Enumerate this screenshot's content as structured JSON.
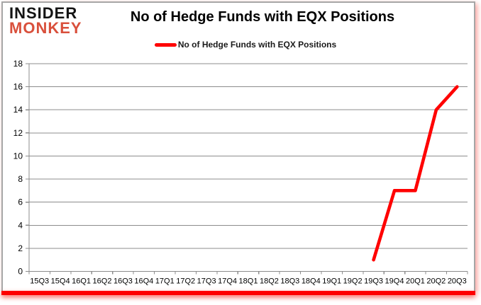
{
  "logo": {
    "line1": "INSIDER",
    "line2": "MONKEY"
  },
  "title": "No of Hedge Funds with EQX Positions",
  "legend": {
    "label": "No of Hedge Funds with EQX Positions"
  },
  "colors": {
    "series_line": "#ff0000",
    "logo_black": "#141414",
    "logo_red": "#d9503c",
    "grid": "#8c8c8c",
    "axis": "#8c8c8c",
    "tick_label": "#000000",
    "accent_bar": "#fe0000"
  },
  "chart_data": {
    "type": "line",
    "title": "No of Hedge Funds with EQX Positions",
    "categories": [
      "15Q3",
      "15Q4",
      "16Q1",
      "16Q2",
      "16Q3",
      "16Q4",
      "17Q1",
      "17Q2",
      "17Q3",
      "17Q4",
      "18Q1",
      "18Q2",
      "18Q3",
      "18Q4",
      "19Q1",
      "19Q2",
      "19Q3",
      "19Q4",
      "20Q1",
      "20Q2",
      "20Q3"
    ],
    "series": [
      {
        "name": "No of Hedge Funds with EQX Positions",
        "color": "#ff0000",
        "values": [
          null,
          null,
          null,
          null,
          null,
          null,
          null,
          null,
          null,
          null,
          null,
          null,
          null,
          null,
          null,
          null,
          1,
          7,
          7,
          14,
          16
        ]
      }
    ],
    "xlabel": "",
    "ylabel": "",
    "ylim": [
      0,
      18
    ],
    "ytick_step": 2,
    "grid": true,
    "legend_position": "top"
  }
}
